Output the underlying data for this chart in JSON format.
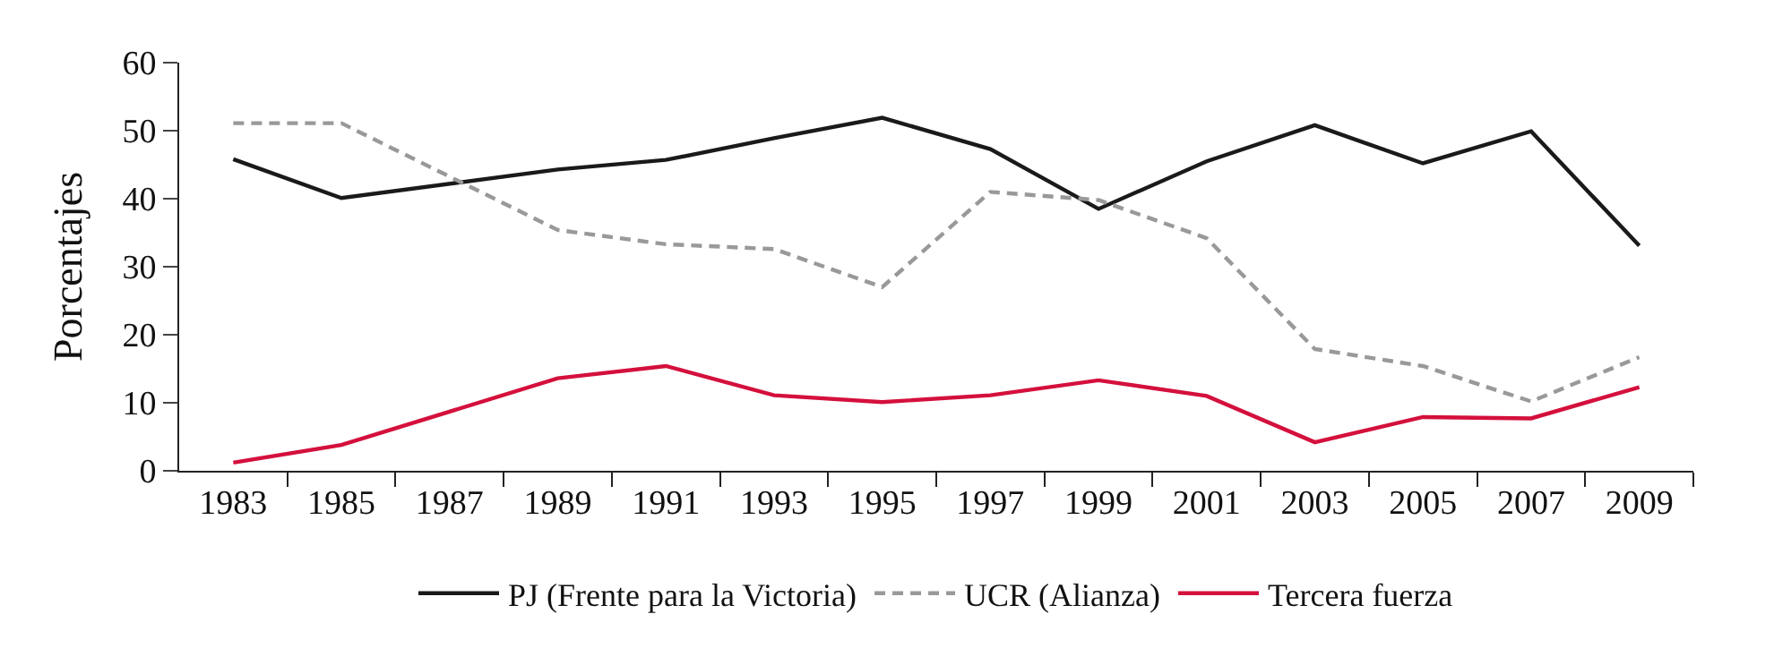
{
  "chart_data": {
    "type": "line",
    "ylabel": "Porcentajes",
    "categories": [
      "1983",
      "1985",
      "1987",
      "1989",
      "1991",
      "1993",
      "1995",
      "1997",
      "1999",
      "2001",
      "2003",
      "2005",
      "2007",
      "2009"
    ],
    "series": [
      {
        "name": "PJ (Frente para la Victoria)",
        "color": "#1a1a1a",
        "line_style": "solid",
        "values": [
          45.8,
          40.1,
          null,
          44.3,
          45.7,
          48.9,
          51.9,
          47.3,
          38.5,
          45.5,
          50.8,
          45.2,
          49.9,
          33.1
        ]
      },
      {
        "name": "UCR (Alianza)",
        "color": "#999999",
        "line_style": "dashed",
        "values": [
          51.1,
          51.1,
          null,
          35.4,
          33.3,
          32.6,
          27,
          41,
          39.8,
          34.2,
          17.9,
          15.4,
          10.2,
          16.7
        ]
      },
      {
        "name": "Tercera fuerza",
        "color": "#d4103c",
        "line_style": "solid",
        "values": [
          1.2,
          3.8,
          null,
          13.6,
          15.4,
          11.1,
          10.1,
          11.1,
          13.3,
          11,
          4.2,
          7.9,
          7.7,
          12.3
        ]
      }
    ],
    "ylim": [
      0,
      60
    ],
    "yticks": [
      0,
      10,
      20,
      30,
      40,
      50,
      60
    ],
    "legend": "bottom",
    "marker": "none"
  }
}
